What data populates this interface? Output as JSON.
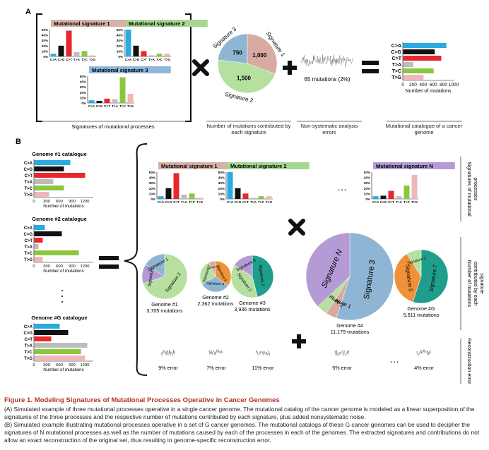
{
  "panel_a": {
    "label": "A",
    "signatures": [
      {
        "title": "Mutational signature 1",
        "color": "#d6b1a6",
        "values": [
          5,
          20,
          48,
          8,
          10,
          2
        ]
      },
      {
        "title": "Mutational signature 2",
        "color": "#a6d68f",
        "values": [
          50,
          20,
          10,
          2,
          5,
          5
        ]
      },
      {
        "title": "Mutational signature 3",
        "color": "#8fb7d9",
        "values": [
          5,
          4,
          8,
          7,
          48,
          17
        ]
      }
    ],
    "sig_yticks": [
      "50%",
      "40%",
      "30%",
      "20%",
      "10%",
      "0%"
    ],
    "sig_xlabels": [
      "C>A",
      "C>G",
      "C>T",
      "T>A",
      "T>C",
      "T>G"
    ],
    "pie": {
      "slices": [
        {
          "label": "Signature 1",
          "value": 1000,
          "value_text": "1,000",
          "color": "#d9aaa1"
        },
        {
          "label": "Signature 2",
          "value": 1500,
          "value_text": "1,500",
          "color": "#b5e0a0"
        },
        {
          "label": "Signature 3",
          "value": 750,
          "value_text": "750",
          "color": "#8eb5d3"
        }
      ]
    },
    "noise_text": "65 mutations (2%)",
    "catalog": {
      "categories": [
        "C>A",
        "C>G",
        "C>T",
        "T>A",
        "T>C",
        "T>G"
      ],
      "values": [
        850,
        620,
        750,
        200,
        600,
        400
      ],
      "xticks": [
        "0",
        "200",
        "400",
        "600",
        "800",
        "1000"
      ],
      "xlabel": "Number of mutations"
    },
    "captions": {
      "signatures": "Signatures of mutational processes",
      "pie": "Number of mutations contributed by each signature",
      "noise": "Non-systematic analysis errors",
      "catalog": "Mutational catalogue of a cancer genome"
    }
  },
  "panel_b": {
    "label": "B",
    "catalogs": [
      {
        "title": "Genome #1 catalogue",
        "values": [
          850,
          700,
          1200,
          450,
          700,
          350
        ]
      },
      {
        "title": "Genome #2 catalogue",
        "values": [
          250,
          650,
          200,
          100,
          1050,
          200
        ]
      },
      {
        "title": "Genome #G catalogue",
        "values": [
          600,
          800,
          400,
          1250,
          1100,
          1200
        ]
      }
    ],
    "catalog_xticks": [
      "0",
      "300",
      "600",
      "900",
      "1200"
    ],
    "catalog_xlabel": "Number of mutations",
    "catalog_categories": [
      "C>A",
      "C>G",
      "C>T",
      "T>A",
      "T>C",
      "T>G"
    ],
    "signatures": [
      {
        "title": "Mutational signature 1",
        "color": "#d6b1a6",
        "values": [
          5,
          20,
          48,
          8,
          10,
          2
        ]
      },
      {
        "title": "Mutational signature 2",
        "color": "#a6d68f",
        "values": [
          50,
          20,
          10,
          2,
          5,
          5
        ]
      },
      {
        "title": "Mutational signature N",
        "color": "#b49bd6",
        "values": [
          5,
          6,
          15,
          5,
          25,
          45
        ]
      }
    ],
    "ellipsis": "…",
    "genomes": [
      {
        "name": "Genome #1",
        "mutations": "3,705 mutations",
        "slices": [
          {
            "label": "Signature 2",
            "value": 70,
            "color": "#b5e0a0"
          },
          {
            "label": "Signature N",
            "value": 14,
            "color": "#b49bd6"
          },
          {
            "label": "Signature 1",
            "value": 16,
            "color": "#8eb5d3"
          }
        ]
      },
      {
        "name": "Genome #2",
        "mutations": "2,362 mutations",
        "slices": [
          {
            "label": "Signature 5",
            "value": 35,
            "color": "#f0913a"
          },
          {
            "label": "Signature 3",
            "value": 32,
            "color": "#8eb5d3"
          },
          {
            "label": "Signature 2",
            "value": 26,
            "color": "#b5e0a0"
          },
          {
            "label": "Signature 1",
            "value": 7,
            "color": "#d9aaa1"
          }
        ]
      },
      {
        "name": "Genome #3",
        "mutations": "3,936 mutations",
        "slices": [
          {
            "label": "Signature 7",
            "value": 46,
            "color": "#1f9e8e"
          },
          {
            "label": "Signature 2",
            "value": 38,
            "color": "#b5e0a0"
          },
          {
            "label": "Signature 5",
            "value": 16,
            "color": "#b49bd6"
          }
        ]
      },
      {
        "name": "Genome #4",
        "mutations": "11,179 mutations",
        "slices": [
          {
            "label": "Signature 3",
            "value": 55,
            "color": "#8eb5d3"
          },
          {
            "label": "Signature 1",
            "value": 4,
            "color": "#d9aaa1"
          },
          {
            "label": "Signature 2",
            "value": 4,
            "color": "#b5e0a0"
          },
          {
            "label": "Signature N",
            "value": 37,
            "color": "#b49bd6"
          }
        ]
      },
      {
        "name": "Genome #G",
        "mutations": "5,511 mutations",
        "slices": [
          {
            "label": "Signature 7",
            "value": 55,
            "color": "#1f9e8e"
          },
          {
            "label": "Signature 5",
            "value": 36,
            "color": "#f0913a"
          },
          {
            "label": "Signature 3",
            "value": 9,
            "color": "#b5e0a0"
          }
        ]
      }
    ],
    "errors": [
      "9% error",
      "7% error",
      "11% error",
      "5% error",
      "4% error"
    ],
    "side_labels": {
      "signatures": "Signatures of mutational processes",
      "contributions": "Number of mutations contributed by each signature",
      "error": "Reconstruction error"
    }
  },
  "caption": {
    "title": "Figure 1.  Modeling Signatures of Mutational Processes Operative in Cancer Genomes",
    "p1": "(A) Simulated example of three mutational processes operative in a single cancer genome. The mutational catalog of the cancer genome is modeled as a linear superposition of the signatures of the three processes and the respective number of mutations contributed by each signature, plus added nonsystematic noise.",
    "p2": "(B) Simulated example illustrating mutational processes operative in a set of G cancer genomes. The mutational catalogs of these G cancer genomes can be used to decipher the signatures of N mutational processes as well as the number of mutations caused by each of the processes in each of the genomes. The extracted signatures and contributions do not allow an exact reconstruction of the original set, thus resulting in genome-specific reconstruction error."
  },
  "colors": {
    "c_a": "#29abe2",
    "c_g": "#111111",
    "c_t": "#e8262b",
    "t_a": "#bdbdbd",
    "t_c": "#8cc63f",
    "t_g": "#eeb7b9",
    "caption_title": "#b0322b"
  }
}
